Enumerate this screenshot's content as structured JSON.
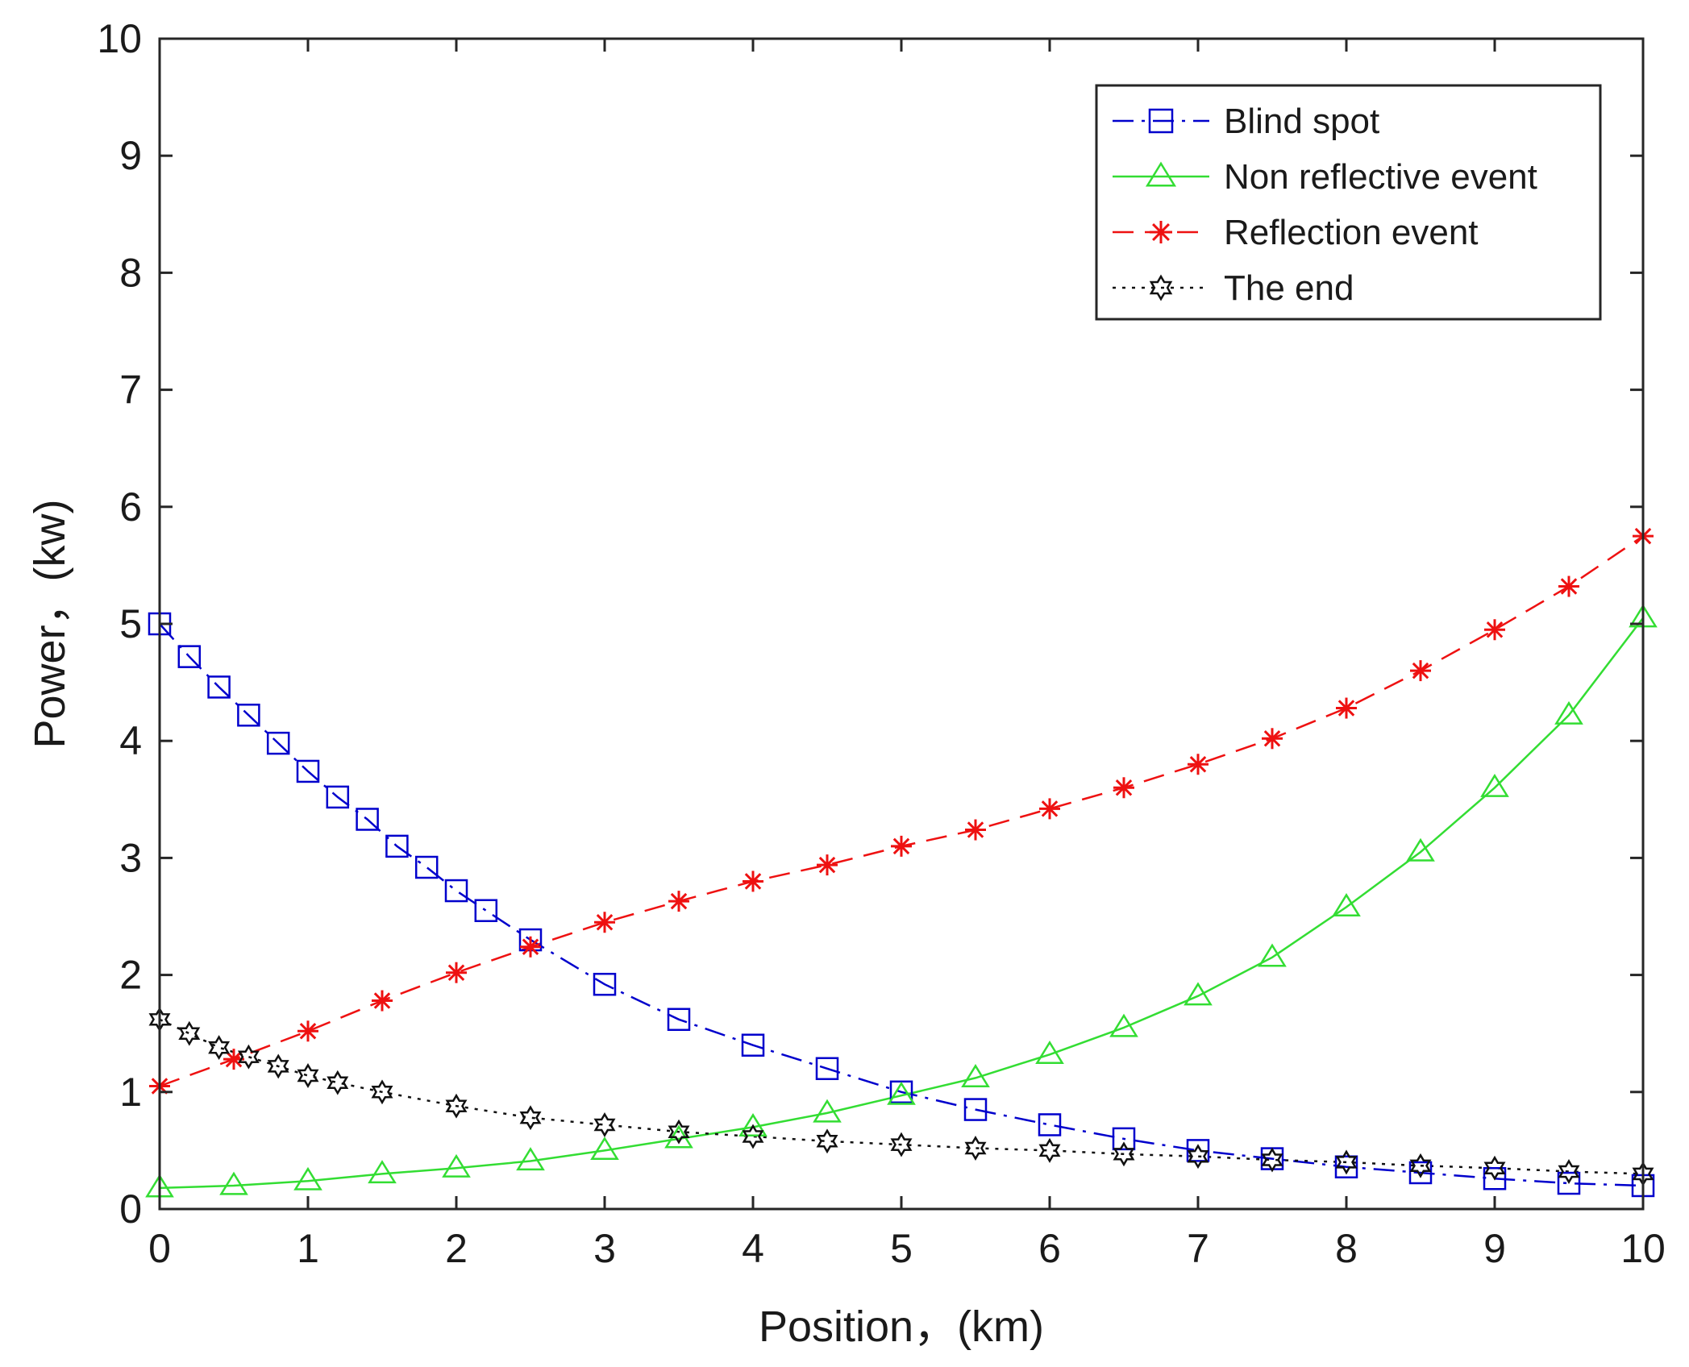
{
  "chart_data": {
    "type": "line",
    "title": "",
    "xlabel": "Position，(km)",
    "ylabel": "Power，(kw)",
    "xlim": [
      0,
      10
    ],
    "ylim": [
      0,
      10
    ],
    "xticks": [
      "0",
      "1",
      "2",
      "3",
      "4",
      "5",
      "6",
      "7",
      "8",
      "9",
      "10"
    ],
    "yticks": [
      "0",
      "1",
      "2",
      "3",
      "4",
      "5",
      "6",
      "7",
      "8",
      "9",
      "10"
    ],
    "grid": false,
    "legend_position": "top-right",
    "series": [
      {
        "name": "Blind spot",
        "color": "#0000cc",
        "line_style": "dash-dot",
        "marker": "square",
        "x": [
          0,
          0.2,
          0.4,
          0.6,
          0.8,
          1.0,
          1.2,
          1.4,
          1.6,
          1.8,
          2.0,
          2.2,
          2.5,
          3.0,
          3.5,
          4.0,
          4.5,
          5.0,
          5.5,
          6.0,
          6.5,
          7.0,
          7.5,
          8.0,
          8.5,
          9.0,
          9.5,
          10.0
        ],
        "values": [
          5.0,
          4.72,
          4.46,
          4.22,
          3.98,
          3.74,
          3.52,
          3.33,
          3.1,
          2.92,
          2.72,
          2.55,
          2.3,
          1.92,
          1.62,
          1.4,
          1.2,
          1.0,
          0.85,
          0.72,
          0.6,
          0.5,
          0.43,
          0.36,
          0.31,
          0.26,
          0.22,
          0.2
        ]
      },
      {
        "name": "Non reflective event",
        "color": "#33dd33",
        "line_style": "solid",
        "marker": "triangle",
        "x": [
          0,
          0.5,
          1.0,
          1.5,
          2.0,
          2.5,
          3.0,
          3.5,
          4.0,
          4.5,
          5.0,
          5.5,
          6.0,
          6.5,
          7.0,
          7.5,
          8.0,
          8.5,
          9.0,
          9.5,
          10.0
        ],
        "values": [
          0.18,
          0.2,
          0.24,
          0.3,
          0.35,
          0.41,
          0.5,
          0.6,
          0.7,
          0.82,
          0.97,
          1.12,
          1.32,
          1.55,
          1.82,
          2.15,
          2.58,
          3.05,
          3.6,
          4.22,
          5.05
        ]
      },
      {
        "name": "Reflection event",
        "color": "#ee1111",
        "line_style": "dashed",
        "marker": "asterisk",
        "x": [
          0,
          0.5,
          1.0,
          1.5,
          2.0,
          2.5,
          3.0,
          3.5,
          4.0,
          4.5,
          5.0,
          5.5,
          6.0,
          6.5,
          7.0,
          7.5,
          8.0,
          8.5,
          9.0,
          9.5,
          10.0
        ],
        "values": [
          1.05,
          1.28,
          1.52,
          1.78,
          2.02,
          2.24,
          2.45,
          2.63,
          2.8,
          2.94,
          3.1,
          3.24,
          3.42,
          3.6,
          3.8,
          4.02,
          4.28,
          4.6,
          4.95,
          5.32,
          5.75
        ]
      },
      {
        "name": "The end",
        "color": "#111111",
        "line_style": "dotted",
        "marker": "hexagram",
        "x": [
          0,
          0.2,
          0.4,
          0.6,
          0.8,
          1.0,
          1.2,
          1.5,
          2.0,
          2.5,
          3.0,
          3.5,
          4.0,
          4.5,
          5.0,
          5.5,
          6.0,
          6.5,
          7.0,
          7.5,
          8.0,
          8.5,
          9.0,
          9.5,
          10.0
        ],
        "values": [
          1.62,
          1.5,
          1.38,
          1.3,
          1.22,
          1.14,
          1.08,
          1.0,
          0.88,
          0.78,
          0.72,
          0.66,
          0.62,
          0.58,
          0.55,
          0.52,
          0.5,
          0.47,
          0.45,
          0.42,
          0.4,
          0.37,
          0.35,
          0.32,
          0.3
        ]
      }
    ]
  }
}
